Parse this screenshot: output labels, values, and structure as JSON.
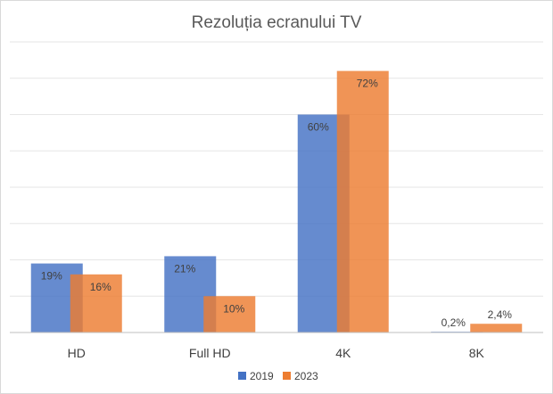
{
  "chart_data": {
    "type": "bar",
    "title": "Rezoluția ecranului TV",
    "categories": [
      "HD",
      "Full HD",
      "4K",
      "8K"
    ],
    "series": [
      {
        "name": "2019",
        "color": "#4472c4",
        "values": [
          19,
          21,
          60,
          0.2
        ],
        "labels": [
          "19%",
          "21%",
          "60%",
          "0,2%"
        ]
      },
      {
        "name": "2023",
        "color": "#ed7d31",
        "values": [
          16,
          10,
          72,
          2.4
        ],
        "labels": [
          "16%",
          "10%",
          "72%",
          "2,4%"
        ]
      }
    ],
    "ylim": [
      0,
      80
    ],
    "y_axis_visible": false,
    "grid": true,
    "legend_position": "bottom",
    "bars_overlapping": true
  }
}
